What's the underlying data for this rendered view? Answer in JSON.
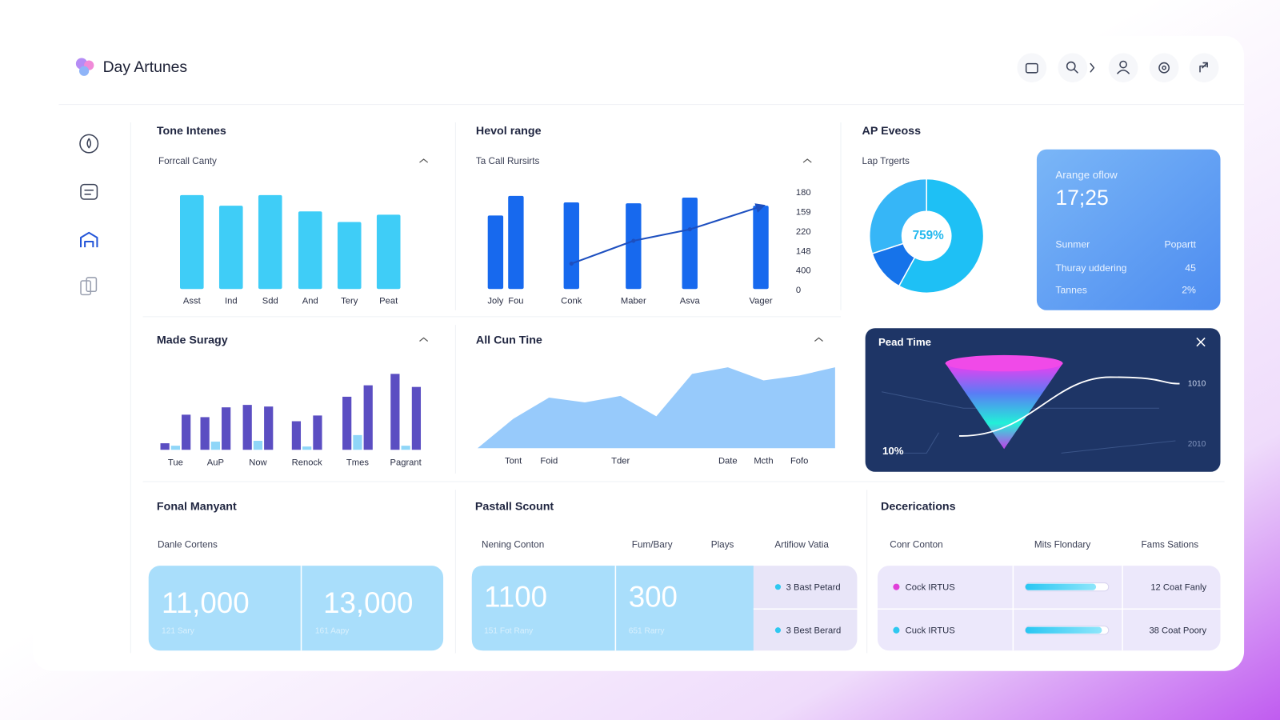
{
  "header": {
    "brand": "Day Artunes"
  },
  "chart_data": [
    {
      "type": "bar",
      "title": "Tone Intenes",
      "subtitle": "Forrcall Canty",
      "categories": [
        "Asst",
        "Ind",
        "Sdd",
        "And",
        "Tery",
        "Peat"
      ],
      "values": [
        115,
        102,
        115,
        95,
        82,
        91
      ],
      "color": "#3fcdf7"
    },
    {
      "type": "combo",
      "title": "Hevol range",
      "subtitle": "Ta Call Rursirts",
      "categories": [
        "Joly",
        "Fou",
        "Conk",
        "Maber",
        "Asva",
        "Vager"
      ],
      "series": [
        {
          "type": "bar",
          "color": "#1769ee",
          "values": [
            90,
            114,
            106,
            105,
            112,
            102
          ]
        },
        {
          "type": "line",
          "color": "#1d4fbf",
          "values": [
            null,
            null,
            31,
            59,
            73,
            101
          ]
        }
      ],
      "tick_labels": [
        "180",
        "159",
        "220",
        "148",
        "400",
        "0"
      ]
    },
    {
      "type": "pie",
      "title": "AP Eveoss",
      "subtitle": "Lap Trgerts",
      "center_label": "759%",
      "values": [
        58,
        12,
        30
      ],
      "colors": [
        "#1ec0f5",
        "#1673ea",
        "#36b6f7"
      ]
    },
    {
      "type": "grouped_bar",
      "title": "Made Suragy",
      "categories": [
        "Tue",
        "AuP",
        "Now",
        "Renock",
        "Tmes",
        "Pagrant"
      ],
      "series": [
        {
          "color": "#5b4ec2",
          "values": [
            8,
            40,
            55,
            35,
            65,
            93
          ]
        },
        {
          "color": "#8fd6f8",
          "values": [
            5,
            10,
            11,
            4,
            18,
            5
          ]
        },
        {
          "color": "#5b4ec2",
          "values": [
            43,
            52,
            53,
            42,
            79,
            77
          ]
        }
      ]
    },
    {
      "type": "area",
      "title": "All Cun Tine",
      "categories": [
        null,
        "Tont",
        "Foid",
        null,
        "Tder",
        null,
        null,
        "Date",
        "Mcth",
        "Fofo",
        null
      ],
      "values": [
        0,
        36,
        62,
        56,
        64,
        39,
        91,
        99,
        83,
        89,
        99
      ],
      "color": "#8cc4fb"
    }
  ],
  "feature_card": {
    "title": "Arange oflow",
    "value": "17;25",
    "rows": [
      [
        "Sunmer",
        "Popartt"
      ],
      [
        "Thuray uddering",
        "45"
      ],
      [
        "Tannes",
        "2%"
      ]
    ]
  },
  "dark_card": {
    "title": "Pead Time",
    "labels": [
      "1010",
      "10%",
      "2010"
    ]
  },
  "summary": {
    "title": "Fonal Manyant",
    "header": "Danle Cortens",
    "tiles": [
      {
        "value": "11,000",
        "caption": "121 Sary"
      },
      {
        "value": "13,000",
        "caption": "161 Aapy"
      }
    ]
  },
  "scount": {
    "title": "Pastall Scount",
    "headers": [
      "Nening Conton",
      "Fum/Bary",
      "Plays",
      "Artifiow Vatia"
    ],
    "tiles": [
      {
        "value": "1100",
        "caption": "151 Fot Rany"
      },
      {
        "value": "300",
        "caption": "651 Rarry"
      }
    ],
    "items": [
      "3 Bast Petard",
      "3 Best Berard"
    ]
  },
  "decer": {
    "title": "Decerications",
    "headers": [
      "Conr Conton",
      "Mits Flondary",
      "Fams Sations"
    ],
    "rows": [
      {
        "name": "Cock IRTUS",
        "color": "#e040d8",
        "progress": 85,
        "note": "12 Coat Fanly"
      },
      {
        "name": "Cuck IRTUS",
        "color": "#2ec8f0",
        "progress": 92,
        "note": "38 Coat Poory"
      }
    ]
  }
}
